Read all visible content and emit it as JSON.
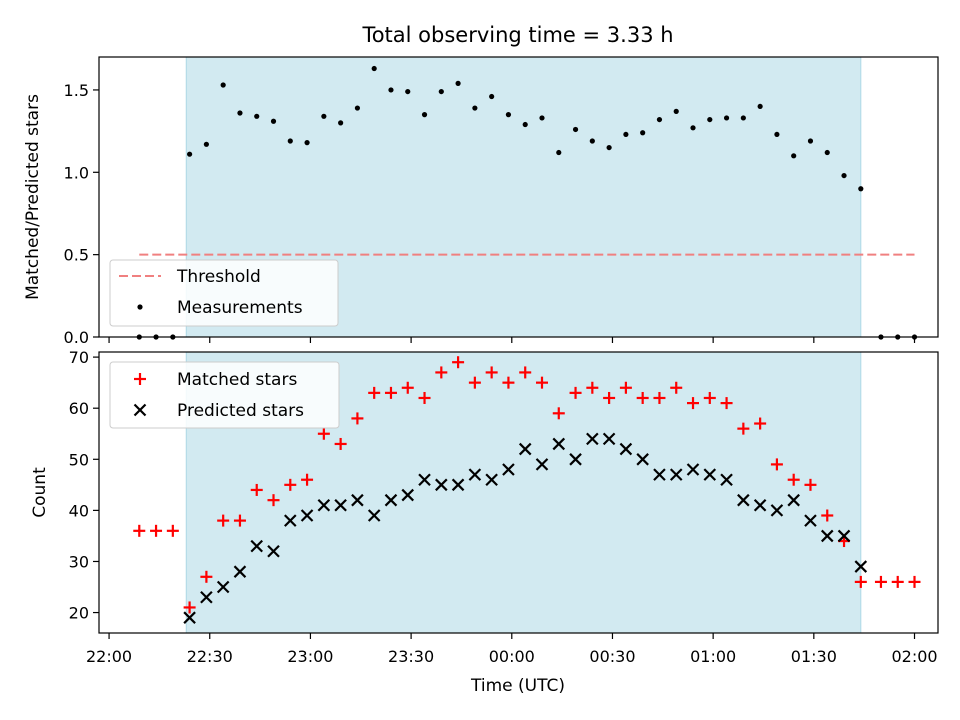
{
  "figure": {
    "title": "Total observing time = 3.33 h",
    "xlabel": "Time (UTC)"
  },
  "colors": {
    "shade": "#add8e6",
    "threshold": "#f08080",
    "measurement": "#000000",
    "matched": "#ff0000",
    "predicted": "#000000"
  },
  "chart_data": [
    {
      "type": "scatter",
      "ylabel": "Matched/Predicted stars",
      "ylim": [
        0,
        1.7
      ],
      "yticks": [
        "0.0",
        "0.5",
        "1.0",
        "1.5"
      ],
      "xlim": [
        "21:57",
        "02:07"
      ],
      "shaded_region": [
        "22:23",
        "01:44"
      ],
      "legend": {
        "placement": "lower-left",
        "entries": [
          "Threshold",
          "Measurements"
        ]
      },
      "threshold": {
        "name": "Threshold",
        "value": 0.5,
        "x": [
          "22:09",
          "02:00"
        ]
      },
      "series": [
        {
          "name": "Measurements",
          "x": [
            "22:09",
            "22:14",
            "22:19",
            "22:24",
            "22:29",
            "22:34",
            "22:39",
            "22:44",
            "22:49",
            "22:54",
            "22:59",
            "23:04",
            "23:09",
            "23:14",
            "23:19",
            "23:24",
            "23:29",
            "23:34",
            "23:39",
            "23:44",
            "23:49",
            "23:54",
            "23:59",
            "00:04",
            "00:09",
            "00:14",
            "00:19",
            "00:24",
            "00:29",
            "00:34",
            "00:39",
            "00:44",
            "00:49",
            "00:54",
            "00:59",
            "01:04",
            "01:09",
            "01:14",
            "01:19",
            "01:24",
            "01:29",
            "01:34",
            "01:39",
            "01:44",
            "01:50",
            "01:55",
            "02:00"
          ],
          "y": [
            0,
            0,
            0,
            1.11,
            1.17,
            1.53,
            1.36,
            1.34,
            1.31,
            1.19,
            1.18,
            1.34,
            1.3,
            1.39,
            1.63,
            1.5,
            1.49,
            1.35,
            1.49,
            1.54,
            1.39,
            1.46,
            1.35,
            1.29,
            1.33,
            1.12,
            1.26,
            1.19,
            1.15,
            1.23,
            1.24,
            1.32,
            1.37,
            1.27,
            1.32,
            1.33,
            1.33,
            1.4,
            1.23,
            1.1,
            1.19,
            1.12,
            0.98,
            0.9,
            0,
            0,
            0
          ]
        }
      ]
    },
    {
      "type": "scatter",
      "ylabel": "Count",
      "ylim": [
        16,
        71
      ],
      "yticks": [
        "20",
        "30",
        "40",
        "50",
        "60",
        "70"
      ],
      "xticks": [
        "22:00",
        "22:30",
        "23:00",
        "23:30",
        "00:00",
        "00:30",
        "01:00",
        "01:30",
        "02:00"
      ],
      "xlim": [
        "21:57",
        "02:07"
      ],
      "shaded_region": [
        "22:23",
        "01:44"
      ],
      "legend": {
        "placement": "upper-left",
        "entries": [
          "Matched stars",
          "Predicted stars"
        ]
      },
      "series": [
        {
          "name": "Matched stars",
          "marker": "plus",
          "x": [
            "22:09",
            "22:14",
            "22:19",
            "22:24",
            "22:29",
            "22:34",
            "22:39",
            "22:44",
            "22:49",
            "22:54",
            "22:59",
            "23:04",
            "23:09",
            "23:14",
            "23:19",
            "23:24",
            "23:29",
            "23:34",
            "23:39",
            "23:44",
            "23:49",
            "23:54",
            "23:59",
            "00:04",
            "00:09",
            "00:14",
            "00:19",
            "00:24",
            "00:29",
            "00:34",
            "00:39",
            "00:44",
            "00:49",
            "00:54",
            "00:59",
            "01:04",
            "01:09",
            "01:14",
            "01:19",
            "01:24",
            "01:29",
            "01:34",
            "01:39",
            "01:44",
            "01:50",
            "01:55",
            "02:00"
          ],
          "y": [
            36,
            36,
            36,
            21,
            27,
            38,
            38,
            44,
            42,
            45,
            46,
            55,
            53,
            58,
            63,
            63,
            64,
            62,
            67,
            69,
            65,
            67,
            65,
            67,
            65,
            59,
            63,
            64,
            62,
            64,
            62,
            62,
            64,
            61,
            62,
            61,
            56,
            57,
            49,
            46,
            45,
            39,
            34,
            26,
            26,
            26,
            26
          ]
        },
        {
          "name": "Predicted stars",
          "marker": "x",
          "x": [
            "22:24",
            "22:29",
            "22:34",
            "22:39",
            "22:44",
            "22:49",
            "22:54",
            "22:59",
            "23:04",
            "23:09",
            "23:14",
            "23:19",
            "23:24",
            "23:29",
            "23:34",
            "23:39",
            "23:44",
            "23:49",
            "23:54",
            "23:59",
            "00:04",
            "00:09",
            "00:14",
            "00:19",
            "00:24",
            "00:29",
            "00:34",
            "00:39",
            "00:44",
            "00:49",
            "00:54",
            "00:59",
            "01:04",
            "01:09",
            "01:14",
            "01:19",
            "01:24",
            "01:29",
            "01:34",
            "01:39",
            "01:44"
          ],
          "y": [
            19,
            23,
            25,
            28,
            33,
            32,
            38,
            39,
            41,
            41,
            42,
            39,
            42,
            43,
            46,
            45,
            45,
            47,
            46,
            48,
            52,
            49,
            53,
            50,
            54,
            54,
            52,
            50,
            47,
            47,
            48,
            47,
            46,
            42,
            41,
            40,
            42,
            38,
            35,
            35,
            29
          ]
        }
      ]
    }
  ]
}
